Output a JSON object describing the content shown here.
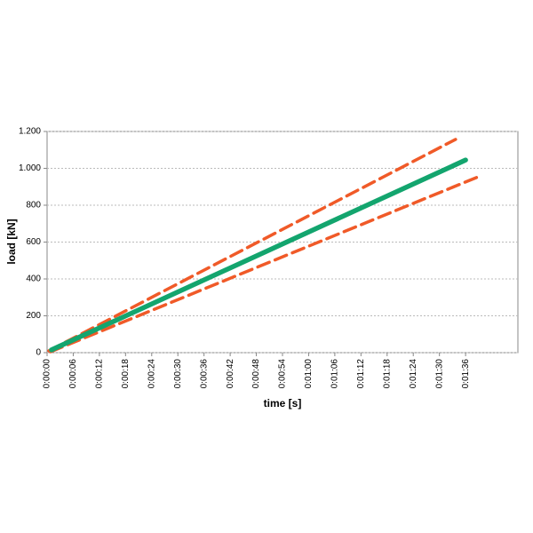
{
  "chart_data": {
    "type": "line",
    "xlabel": "time [s]",
    "ylabel": "load [kN]",
    "xlim": [
      0,
      108
    ],
    "ylim": [
      0,
      1200
    ],
    "xticks": [
      {
        "value": 0,
        "label": "0:00:00"
      },
      {
        "value": 6,
        "label": "0:00:06"
      },
      {
        "value": 12,
        "label": "0:00:12"
      },
      {
        "value": 18,
        "label": "0:00:18"
      },
      {
        "value": 24,
        "label": "0:00:24"
      },
      {
        "value": 30,
        "label": "0:00:30"
      },
      {
        "value": 36,
        "label": "0:00:36"
      },
      {
        "value": 42,
        "label": "0:00:42"
      },
      {
        "value": 48,
        "label": "0:00:48"
      },
      {
        "value": 54,
        "label": "0:00:54"
      },
      {
        "value": 60,
        "label": "0:01:00"
      },
      {
        "value": 66,
        "label": "0:01:06"
      },
      {
        "value": 72,
        "label": "0:01:12"
      },
      {
        "value": 78,
        "label": "0:01:18"
      },
      {
        "value": 84,
        "label": "0:01:24"
      },
      {
        "value": 90,
        "label": "0:01:30"
      },
      {
        "value": 96,
        "label": "0:01:36"
      }
    ],
    "yticks": [
      0,
      200,
      400,
      600,
      800,
      {
        "value": 1000,
        "label": "1.000"
      },
      {
        "value": 1200,
        "label": "1.200"
      }
    ],
    "grid": true,
    "series": [
      {
        "x": [
          0.4,
          93.7
        ],
        "values": [
          10,
          1157
        ],
        "color": "#f05a28",
        "dash": true,
        "width": 3.5
      },
      {
        "x": [
          0.8,
          99.4
        ],
        "values": [
          5,
          959
        ],
        "color": "#f05a28",
        "dash": true,
        "width": 3.5
      },
      {
        "x": [
          1,
          96
        ],
        "values": [
          15,
          1045
        ],
        "color": "#13a56e",
        "dash": false,
        "width": 5.5
      }
    ]
  }
}
